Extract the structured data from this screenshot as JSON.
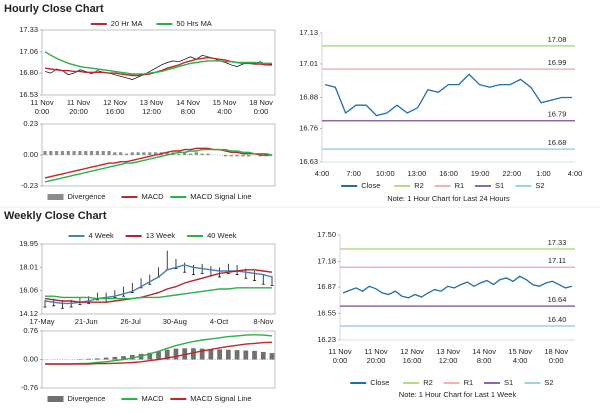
{
  "headings": [
    "Hourly Close Chart",
    "Weekly Close Chart"
  ],
  "chart_data": [
    {
      "type": "line",
      "ylim": [
        16.53,
        17.33
      ],
      "yticks": [
        {
          "value": 16.53,
          "label": "16.53"
        },
        {
          "value": 16.8,
          "label": "16.80"
        },
        {
          "value": 17.06,
          "label": "17.06"
        },
        {
          "value": 17.33,
          "label": "17.33"
        }
      ],
      "x_labels": [
        [
          "11 Nov",
          "0:00"
        ],
        [
          "11 Nov",
          "20:00"
        ],
        [
          "12 Nov",
          "16:00"
        ],
        [
          "13 Nov",
          "12:00"
        ],
        [
          "14 Nov",
          "8:00"
        ],
        [
          "15 Nov",
          "4:00"
        ],
        [
          "18 Nov",
          "0:00"
        ]
      ],
      "color": "#000000",
      "values": [
        16.82,
        16.8,
        16.85,
        16.83,
        16.78,
        16.8,
        16.84,
        16.82,
        16.79,
        16.83,
        16.81,
        16.8,
        16.78,
        16.76,
        16.74,
        16.72,
        16.75,
        16.78,
        16.82,
        16.86,
        16.9,
        16.93,
        16.95,
        16.94,
        16.97,
        17.0,
        16.97,
        17.02,
        17.0,
        16.98,
        16.95,
        16.93,
        16.9,
        16.88,
        16.91,
        16.93,
        16.92,
        16.94,
        16.9,
        16.91
      ],
      "series": [
        {
          "name": "20 Hr MA",
          "color": "#c0272d",
          "values": [
            16.86,
            16.85,
            16.84,
            16.83,
            16.83,
            16.82,
            16.82,
            16.81,
            16.81,
            16.81,
            16.81,
            16.8,
            16.8,
            16.79,
            16.78,
            16.77,
            16.77,
            16.78,
            16.79,
            16.81,
            16.83,
            16.86,
            16.88,
            16.9,
            16.93,
            16.95,
            16.97,
            16.98,
            16.99,
            16.98,
            16.97,
            16.96,
            16.94,
            16.93,
            16.92,
            16.92,
            16.91,
            16.91,
            16.9,
            16.9
          ]
        },
        {
          "name": "50 Hrs MA",
          "color": "#2bb04a",
          "values": [
            17.06,
            17.02,
            16.98,
            16.95,
            16.92,
            16.9,
            16.88,
            16.87,
            16.86,
            16.85,
            16.84,
            16.83,
            16.82,
            16.81,
            16.8,
            16.79,
            16.79,
            16.79,
            16.8,
            16.81,
            16.82,
            16.84,
            16.86,
            16.88,
            16.9,
            16.92,
            16.93,
            16.94,
            16.95,
            16.95,
            16.95,
            16.94,
            16.94,
            16.93,
            16.93,
            16.93,
            16.93,
            16.92,
            16.92,
            16.92
          ]
        }
      ]
    },
    {
      "type": "macd",
      "ylim": [
        -0.23,
        0.23
      ],
      "yticks": [
        -0.23,
        {
          "value": 0,
          "label": "0.00"
        },
        0.23
      ],
      "series": [
        {
          "name": "Divergence",
          "color": "#8c8c8c",
          "mark": "bar",
          "values": [
            0.03,
            0.03,
            0.03,
            0.03,
            0.03,
            0.03,
            0.03,
            0.03,
            0.03,
            0.03,
            0.03,
            0.03,
            0.02,
            0.02,
            0.01,
            0.02,
            0.02,
            0.02,
            0.02,
            0.02,
            0.02,
            0.02,
            0.02,
            0.01,
            0.02,
            0.01,
            0.02,
            0.01,
            0.01,
            0.0,
            0.0,
            -0.01,
            -0.01,
            -0.01,
            -0.01,
            -0.01,
            0.0,
            -0.01,
            -0.01,
            0.0
          ]
        },
        {
          "name": "MACD",
          "color": "#c0272d",
          "values": [
            -0.17,
            -0.16,
            -0.15,
            -0.14,
            -0.13,
            -0.12,
            -0.11,
            -0.1,
            -0.09,
            -0.08,
            -0.07,
            -0.06,
            -0.06,
            -0.05,
            -0.05,
            -0.04,
            -0.03,
            -0.02,
            -0.01,
            0.0,
            0.01,
            0.02,
            0.03,
            0.03,
            0.04,
            0.04,
            0.05,
            0.05,
            0.05,
            0.04,
            0.04,
            0.03,
            0.02,
            0.02,
            0.01,
            0.01,
            0.01,
            0.0,
            0.0,
            0.0
          ]
        },
        {
          "name": "MACD Signal Line",
          "color": "#2bb04a",
          "values": [
            -0.2,
            -0.19,
            -0.18,
            -0.17,
            -0.16,
            -0.15,
            -0.14,
            -0.13,
            -0.12,
            -0.11,
            -0.1,
            -0.09,
            -0.08,
            -0.07,
            -0.06,
            -0.06,
            -0.05,
            -0.04,
            -0.03,
            -0.02,
            -0.01,
            0.0,
            0.01,
            0.02,
            0.02,
            0.03,
            0.03,
            0.04,
            0.04,
            0.04,
            0.04,
            0.04,
            0.03,
            0.03,
            0.02,
            0.02,
            0.01,
            0.01,
            0.01,
            0.0
          ]
        }
      ]
    },
    {
      "type": "pivot",
      "ylim": [
        16.63,
        17.13
      ],
      "yticks": [
        {
          "value": 16.63,
          "label": "16.63"
        },
        16.76,
        16.88,
        17.01,
        17.13
      ],
      "x_labels": [
        "4:00",
        "7:00",
        "10:00",
        "13:00",
        "16:00",
        "19:00",
        "22:00",
        "1:00",
        "4:00"
      ],
      "series": [
        {
          "name": "Close",
          "color": "#1f6fa8",
          "values": [
            16.93,
            16.92,
            16.82,
            16.85,
            16.85,
            16.81,
            16.82,
            16.85,
            16.82,
            16.84,
            16.91,
            16.9,
            16.93,
            16.93,
            16.97,
            16.93,
            16.92,
            16.93,
            16.93,
            16.95,
            16.92,
            16.86,
            16.87,
            16.88,
            16.88
          ]
        }
      ],
      "levels": [
        {
          "name": "R2",
          "color": "#b5d98a",
          "value": 17.08
        },
        {
          "name": "R1",
          "color": "#f2b3b3",
          "value": 16.99
        },
        {
          "name": "S1",
          "color": "#8a68a3",
          "value": 16.79
        },
        {
          "name": "S2",
          "color": "#9ed3e3",
          "value": 16.68
        }
      ],
      "note": "Note: 1 Hour Chart for Last 24 Hours"
    },
    {
      "type": "line",
      "ylim": [
        14.12,
        19.95
      ],
      "yticks": [
        14.12,
        16.06,
        18.01,
        19.95
      ],
      "x_labels": [
        "17-May",
        "21-Jun",
        "26-Jul",
        "30-Aug",
        "4-Oct",
        "8-Nov"
      ],
      "high": [
        15.3,
        15.4,
        15.3,
        15.3,
        15.5,
        15.6,
        15.9,
        15.9,
        16.1,
        16.4,
        16.7,
        17.1,
        17.4,
        18.0,
        19.4,
        18.7,
        18.4,
        18.2,
        18.3,
        18.1,
        18.0,
        18.3,
        18.2,
        17.9,
        17.7,
        17.4,
        17.3
      ],
      "low": [
        14.7,
        14.8,
        14.6,
        14.7,
        14.9,
        15.0,
        15.3,
        15.1,
        15.5,
        15.6,
        15.9,
        16.3,
        16.6,
        17.2,
        17.8,
        17.9,
        17.6,
        17.4,
        17.5,
        17.3,
        17.2,
        17.5,
        17.4,
        17.1,
        16.9,
        16.6,
        16.5
      ],
      "series": [
        {
          "name": "4 Week",
          "color": "#4a7ebb",
          "values": [
            15.2,
            15.1,
            15.0,
            15.0,
            15.1,
            15.2,
            15.4,
            15.5,
            15.6,
            15.8,
            16.0,
            16.4,
            16.8,
            17.2,
            17.8,
            18.0,
            18.2,
            18.0,
            17.9,
            17.8,
            17.7,
            17.7,
            17.7,
            17.6,
            17.5,
            17.4,
            17.2
          ]
        },
        {
          "name": "13 Week",
          "color": "#b0262b",
          "values": [
            15.4,
            15.3,
            15.2,
            15.2,
            15.1,
            15.1,
            15.1,
            15.1,
            15.2,
            15.3,
            15.4,
            15.5,
            15.7,
            15.9,
            16.2,
            16.4,
            16.7,
            16.9,
            17.1,
            17.3,
            17.5,
            17.6,
            17.7,
            17.8,
            17.8,
            17.7,
            17.6
          ]
        },
        {
          "name": "40 Week",
          "color": "#2bb04a",
          "values": [
            15.6,
            15.6,
            15.5,
            15.5,
            15.5,
            15.5,
            15.4,
            15.4,
            15.4,
            15.4,
            15.4,
            15.5,
            15.5,
            15.5,
            15.6,
            15.7,
            15.8,
            15.9,
            16.0,
            16.1,
            16.2,
            16.2,
            16.3,
            16.3,
            16.3,
            16.3,
            16.3
          ]
        }
      ]
    },
    {
      "type": "macd",
      "ylim": [
        -0.76,
        0.76
      ],
      "yticks": [
        -0.76,
        {
          "value": 0,
          "label": "0.00"
        },
        0.76
      ],
      "series": [
        {
          "name": "Divergence",
          "color": "#707070",
          "mark": "bar",
          "values": [
            0,
            0,
            0,
            0,
            0.01,
            0.02,
            0.03,
            0.05,
            0.07,
            0.09,
            0.12,
            0.15,
            0.18,
            0.22,
            0.26,
            0.29,
            0.3,
            0.3,
            0.29,
            0.28,
            0.27,
            0.26,
            0.25,
            0.24,
            0.23,
            0.2,
            0.17
          ]
        },
        {
          "name": "MACD",
          "color": "#2bb04a",
          "values": [
            -0.12,
            -0.12,
            -0.12,
            -0.12,
            -0.11,
            -0.1,
            -0.08,
            -0.06,
            -0.03,
            0.0,
            0.04,
            0.09,
            0.15,
            0.22,
            0.3,
            0.37,
            0.43,
            0.48,
            0.52,
            0.55,
            0.58,
            0.61,
            0.63,
            0.65,
            0.66,
            0.65,
            0.63
          ]
        },
        {
          "name": "MACD Signal Line",
          "color": "#c0272d",
          "values": [
            -0.12,
            -0.12,
            -0.12,
            -0.12,
            -0.12,
            -0.12,
            -0.11,
            -0.11,
            -0.1,
            -0.09,
            -0.08,
            -0.06,
            -0.03,
            0.0,
            0.04,
            0.08,
            0.13,
            0.18,
            0.23,
            0.27,
            0.31,
            0.35,
            0.38,
            0.41,
            0.43,
            0.45,
            0.46
          ]
        }
      ]
    },
    {
      "type": "pivot",
      "ylim": [
        16.23,
        17.5
      ],
      "yticks": [
        16.23,
        16.55,
        16.87,
        17.18,
        {
          "value": 17.5,
          "label": "17.50"
        }
      ],
      "x_labels": [
        [
          "11 Nov",
          "0:00"
        ],
        [
          "11 Nov",
          "20:00"
        ],
        [
          "12 Nov",
          "16:00"
        ],
        [
          "13 Nov",
          "12:00"
        ],
        [
          "14 Nov",
          "8:00"
        ],
        [
          "15 Nov",
          "4:00"
        ],
        [
          "18 Nov",
          "0:00"
        ]
      ],
      "series": [
        {
          "name": "Close",
          "color": "#1f6fa8",
          "values": [
            16.8,
            16.83,
            16.86,
            16.82,
            16.88,
            16.85,
            16.8,
            16.78,
            16.82,
            16.76,
            16.74,
            16.78,
            16.75,
            16.8,
            16.84,
            16.82,
            16.88,
            16.86,
            16.9,
            16.93,
            16.88,
            16.92,
            16.95,
            16.9,
            16.96,
            16.98,
            16.94,
            17.0,
            16.96,
            16.9,
            16.88,
            16.92,
            16.94,
            16.9,
            16.86,
            16.88
          ]
        }
      ],
      "levels": [
        {
          "name": "R2",
          "color": "#b5d98a",
          "value": 17.33
        },
        {
          "name": "R1",
          "color": "#f2b3b3",
          "value": 17.11
        },
        {
          "name": "S1",
          "color": "#8a68a3",
          "value": 16.64
        },
        {
          "name": "S2",
          "color": "#9ed3e3",
          "value": 16.4,
          "value_label": "16.40"
        }
      ],
      "note": "Note: 1 Hour Chart for Last 1 Week"
    }
  ]
}
